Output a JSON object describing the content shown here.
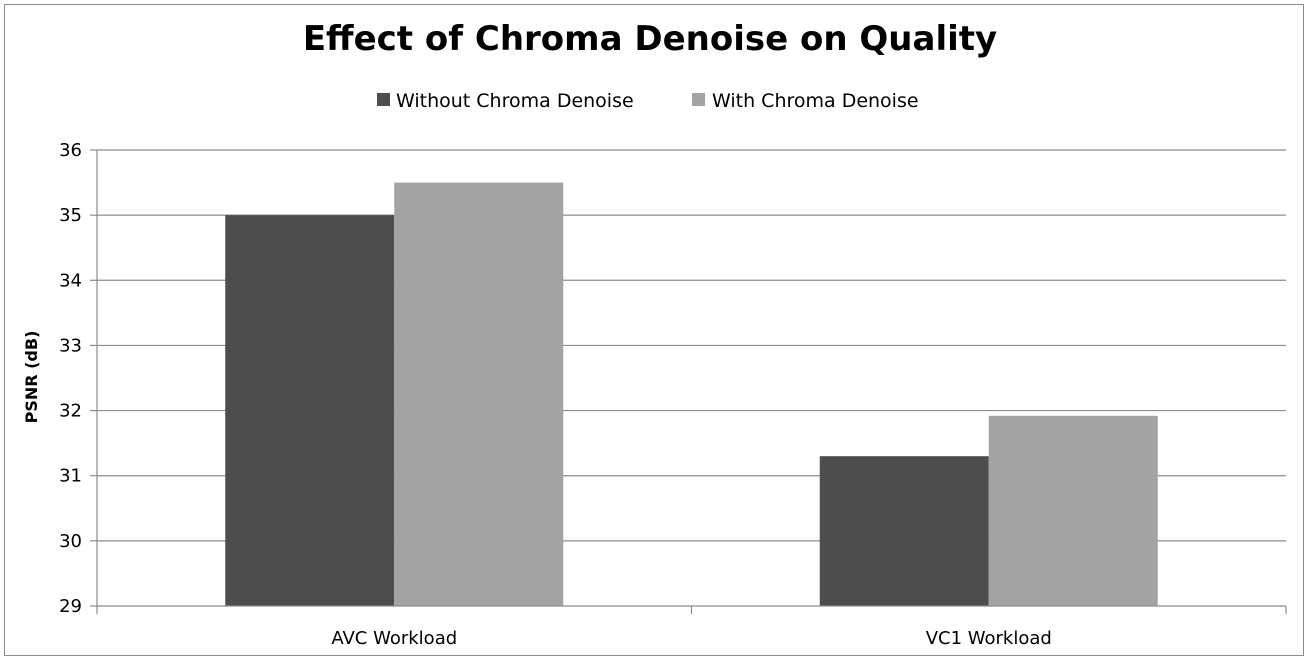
{
  "chart_data": {
    "type": "bar",
    "title": "Effect of Chroma Denoise on Quality",
    "xlabel": "",
    "ylabel": "PSNR (dB)",
    "categories": [
      "AVC Workload",
      "VC1 Workload"
    ],
    "series": [
      {
        "name": "Without Chroma Denoise",
        "values": [
          35.0,
          31.3
        ],
        "color": "#4d4d4d"
      },
      {
        "name": "With Chroma Denoise",
        "values": [
          35.5,
          31.92
        ],
        "color": "#a3a3a3"
      }
    ],
    "ylim": [
      29,
      36
    ],
    "yticks": [
      "29",
      "30",
      "31",
      "32",
      "33",
      "34",
      "35",
      "36"
    ],
    "grid": true,
    "legend_position": "top-center",
    "gridline_color": "#8c8c8c",
    "axis_color": "#8c8c8c"
  }
}
